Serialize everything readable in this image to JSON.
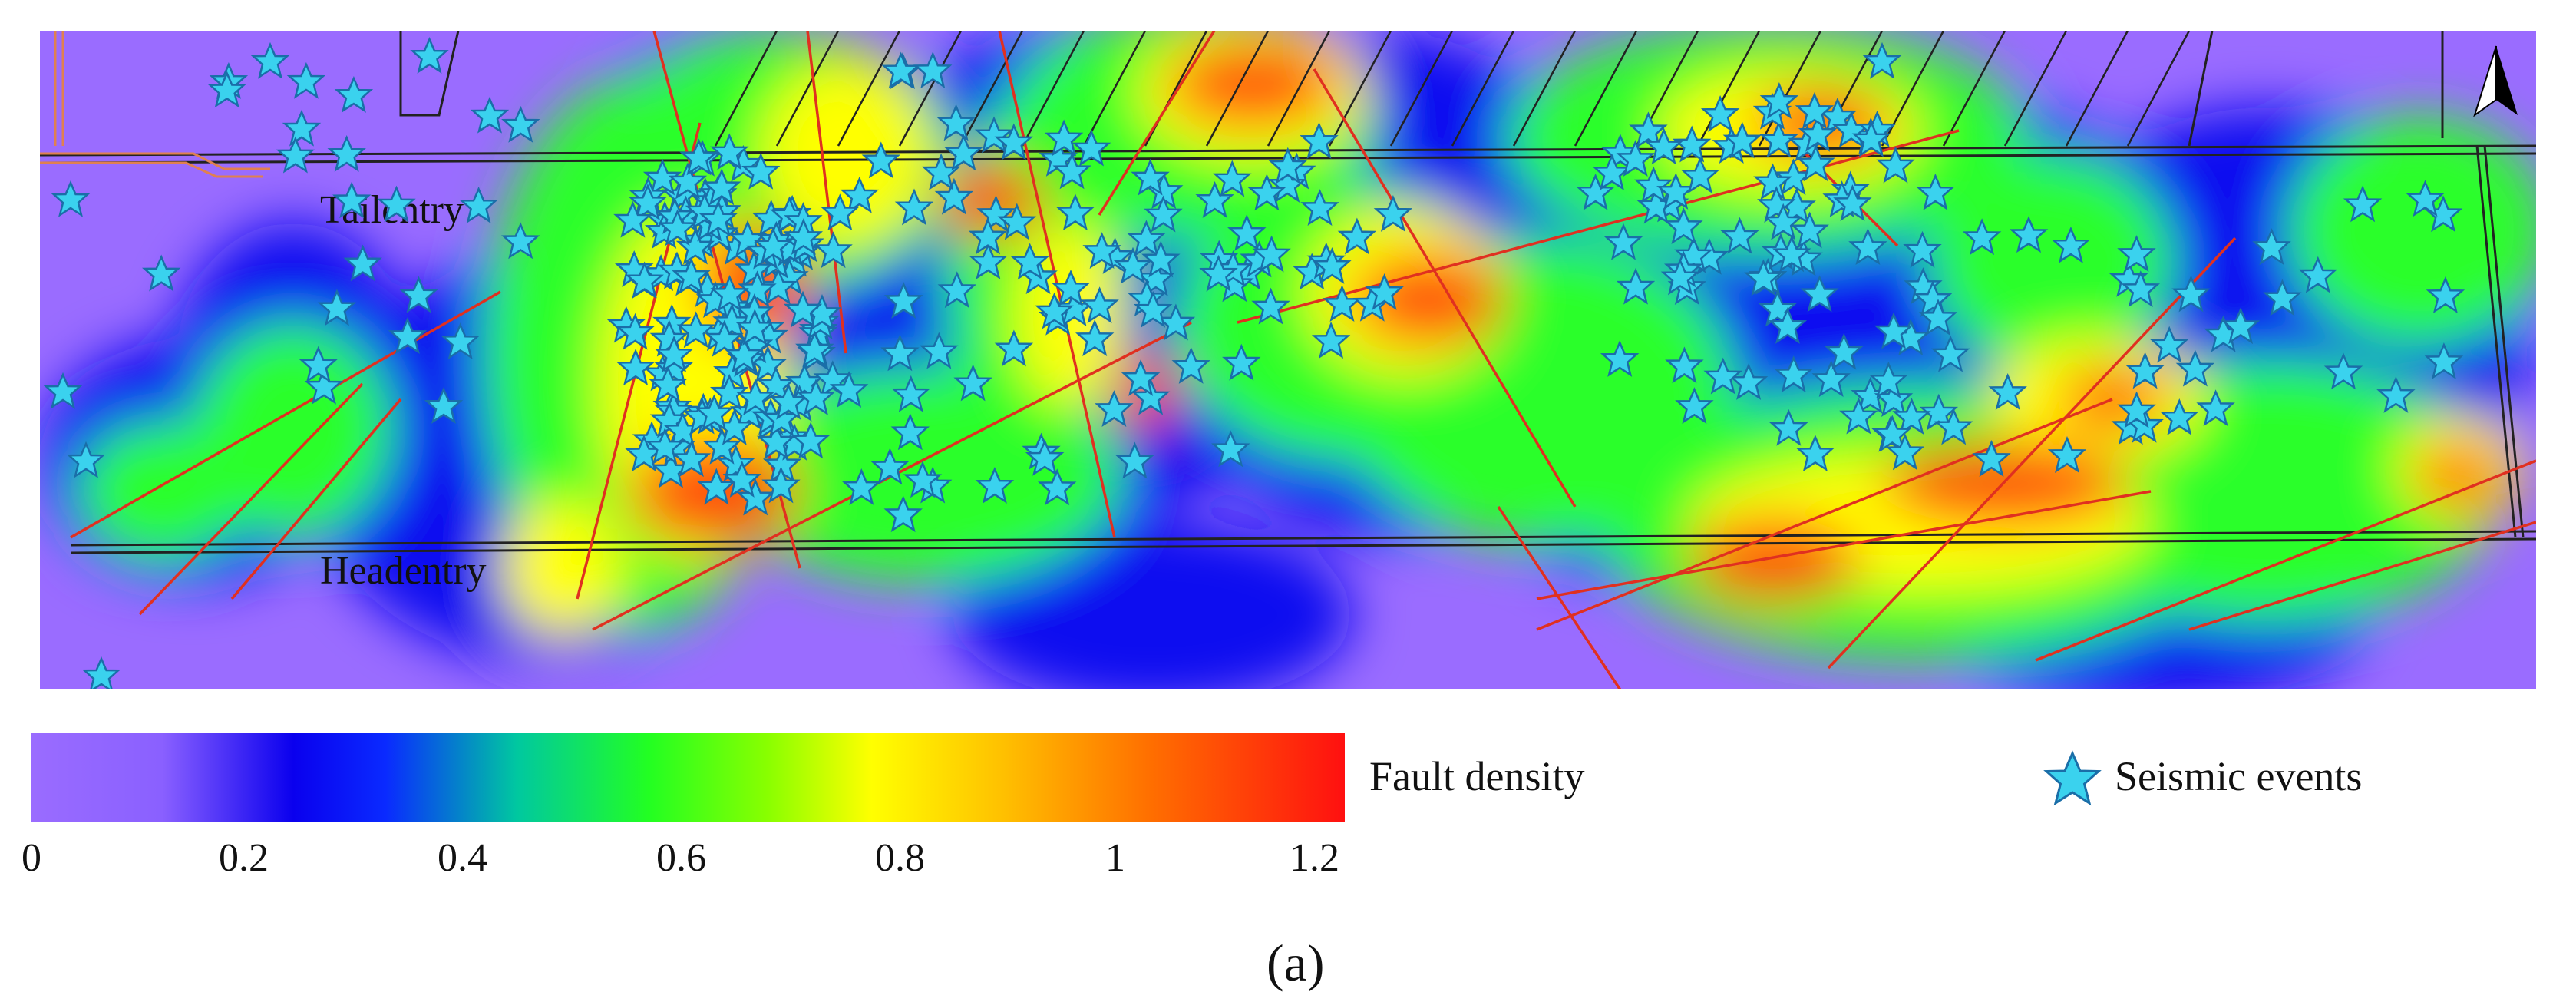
{
  "map": {
    "roadway_labels": {
      "tailentry": "Tailentry",
      "headentry": "Headentry"
    },
    "colors": {
      "seismic_star_fill": "#3ad2ee",
      "seismic_star_stroke": "#1a6ea8",
      "fault_line": "#e03020",
      "outline": "#222222",
      "low": "#9a6cff",
      "mid_low": "#0a10f0",
      "mid": "#2bff2b",
      "mid_high": "#ffff00",
      "high": "#ff2a10"
    },
    "icons": [
      "north-arrow-icon",
      "star-icon"
    ]
  },
  "colorbar": {
    "title": "Fault density",
    "ticks": [
      "0",
      "0.2",
      "0.4",
      "0.6",
      "0.8",
      "1",
      "1.2"
    ],
    "range": [
      0,
      1.2
    ]
  },
  "legend": {
    "label": "Seismic events"
  },
  "panel_label": "(a)"
}
